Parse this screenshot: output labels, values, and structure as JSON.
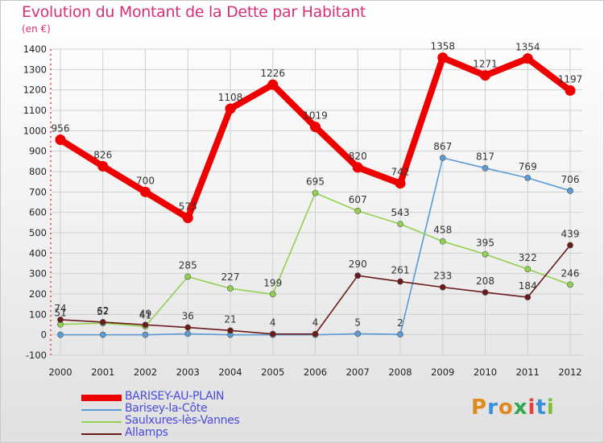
{
  "header": {
    "title": "Evolution du Montant de la Dette par Habitant",
    "unit": "(en €)"
  },
  "brand": {
    "text": "Proxiti",
    "colors": [
      "#e08a1e",
      "#3a8fd6",
      "#e08a1e",
      "#2fa84f",
      "#e64040",
      "#3a8fd6",
      "#7fbf3a"
    ]
  },
  "legend": {
    "items": [
      {
        "label": "BARISEY-AU-PLAIN",
        "color": "#ee0000"
      },
      {
        "label": "Barisey-la-Côte",
        "color": "#5b9bd5"
      },
      {
        "label": "Saulxures-lès-Vannes",
        "color": "#92d050"
      },
      {
        "label": "Allamps",
        "color": "#6b1a1a"
      }
    ]
  },
  "chart_data": {
    "type": "line",
    "title": "Evolution du Montant de la Dette par Habitant",
    "subtitle": "(en €)",
    "x": [
      "2000",
      "2001",
      "2002",
      "2003",
      "2004",
      "2005",
      "2006",
      "2007",
      "2008",
      "2009",
      "2010",
      "2011",
      "2012"
    ],
    "ylim": [
      -100,
      1400
    ],
    "yticks": [
      -100,
      0,
      100,
      200,
      300,
      400,
      500,
      600,
      700,
      800,
      900,
      1000,
      1100,
      1200,
      1300,
      1400
    ],
    "grid": true,
    "legend_position": "bottom-left",
    "series": [
      {
        "name": "BARISEY-AU-PLAIN",
        "color": "#ee0000",
        "values": [
          956,
          826,
          700,
          573,
          1108,
          1226,
          1019,
          820,
          742,
          1358,
          1271,
          1354,
          1197
        ],
        "labels": [
          "956",
          "826",
          "700",
          "573",
          "1108",
          "1226",
          "1019",
          "820",
          "742",
          "1358",
          "1271",
          "1354",
          "1197"
        ]
      },
      {
        "name": "Barisey-la-Côte",
        "color": "#5b9bd5",
        "values": [
          0,
          0,
          0,
          5,
          0,
          0,
          0,
          5,
          2,
          867,
          817,
          769,
          706
        ],
        "labels": [
          "",
          "",
          "",
          "",
          "",
          "",
          "",
          "5",
          "2",
          "867",
          "817",
          "769",
          "706"
        ]
      },
      {
        "name": "Saulxures-lès-Vannes",
        "color": "#92d050",
        "values": [
          51,
          57,
          41,
          285,
          227,
          199,
          695,
          607,
          543,
          458,
          395,
          322,
          246
        ],
        "labels": [
          "51",
          "57",
          "41",
          "285",
          "227",
          "199",
          "695",
          "607",
          "543",
          "458",
          "395",
          "322",
          "246"
        ]
      },
      {
        "name": "Allamps",
        "color": "#6b1a1a",
        "values": [
          74,
          62,
          49,
          36,
          21,
          4,
          4,
          290,
          261,
          233,
          208,
          184,
          439
        ],
        "labels": [
          "74",
          "62",
          "49",
          "36",
          "21",
          "4",
          "4",
          "290",
          "261",
          "233",
          "208",
          "184",
          "439"
        ]
      }
    ]
  }
}
